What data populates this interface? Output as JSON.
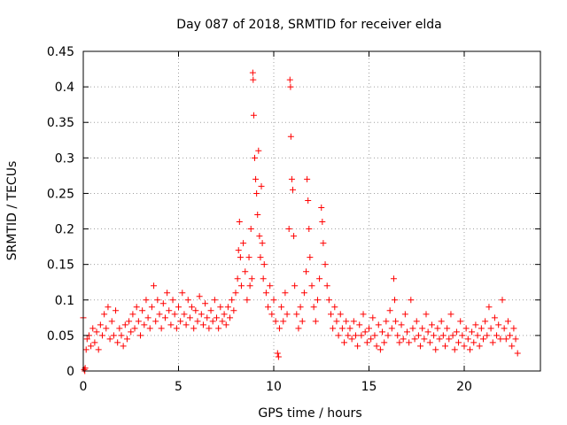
{
  "chart_data": {
    "type": "scatter",
    "title": "Day 087 of 2018, SRMTID for receiver elda",
    "xlabel": "GPS time / hours",
    "ylabel": "SRMTID / TECUs",
    "xlim": [
      0,
      24
    ],
    "ylim": [
      0,
      0.45
    ],
    "xticks": [
      0,
      5,
      10,
      15,
      20
    ],
    "xtick_labels": [
      "0",
      "5",
      "10",
      "15",
      "20"
    ],
    "yticks": [
      0,
      0.05,
      0.1,
      0.15,
      0.2,
      0.25,
      0.3,
      0.35,
      0.4,
      0.45
    ],
    "ytick_labels": [
      "0",
      "0.05",
      "0.1",
      "0.15",
      "0.2",
      "0.25",
      "0.3",
      "0.35",
      "0.4",
      "0.45"
    ],
    "grid": true,
    "marker": "+",
    "color": "#ff0000",
    "series": [
      {
        "name": "SRMTID",
        "points": [
          [
            0.0,
            0.075
          ],
          [
            0.05,
            0.002
          ],
          [
            0.08,
            0.0
          ],
          [
            0.1,
            0.004
          ],
          [
            0.15,
            0.03
          ],
          [
            0.2,
            0.045
          ],
          [
            0.3,
            0.05
          ],
          [
            0.4,
            0.035
          ],
          [
            0.5,
            0.06
          ],
          [
            0.6,
            0.04
          ],
          [
            0.7,
            0.055
          ],
          [
            0.8,
            0.03
          ],
          [
            0.9,
            0.065
          ],
          [
            1.0,
            0.05
          ],
          [
            1.1,
            0.08
          ],
          [
            1.2,
            0.06
          ],
          [
            1.3,
            0.09
          ],
          [
            1.4,
            0.045
          ],
          [
            1.5,
            0.07
          ],
          [
            1.6,
            0.05
          ],
          [
            1.7,
            0.085
          ],
          [
            1.8,
            0.04
          ],
          [
            1.9,
            0.06
          ],
          [
            2.0,
            0.05
          ],
          [
            2.1,
            0.035
          ],
          [
            2.2,
            0.065
          ],
          [
            2.3,
            0.045
          ],
          [
            2.4,
            0.07
          ],
          [
            2.5,
            0.055
          ],
          [
            2.6,
            0.08
          ],
          [
            2.7,
            0.06
          ],
          [
            2.8,
            0.09
          ],
          [
            2.9,
            0.07
          ],
          [
            3.0,
            0.05
          ],
          [
            3.1,
            0.085
          ],
          [
            3.2,
            0.065
          ],
          [
            3.3,
            0.1
          ],
          [
            3.4,
            0.075
          ],
          [
            3.5,
            0.06
          ],
          [
            3.6,
            0.09
          ],
          [
            3.7,
            0.12
          ],
          [
            3.8,
            0.07
          ],
          [
            3.9,
            0.1
          ],
          [
            4.0,
            0.08
          ],
          [
            4.1,
            0.06
          ],
          [
            4.2,
            0.095
          ],
          [
            4.3,
            0.075
          ],
          [
            4.4,
            0.11
          ],
          [
            4.5,
            0.085
          ],
          [
            4.6,
            0.065
          ],
          [
            4.7,
            0.1
          ],
          [
            4.8,
            0.08
          ],
          [
            4.9,
            0.06
          ],
          [
            5.0,
            0.09
          ],
          [
            5.1,
            0.07
          ],
          [
            5.2,
            0.11
          ],
          [
            5.3,
            0.08
          ],
          [
            5.4,
            0.065
          ],
          [
            5.5,
            0.1
          ],
          [
            5.6,
            0.075
          ],
          [
            5.7,
            0.09
          ],
          [
            5.8,
            0.06
          ],
          [
            5.9,
            0.085
          ],
          [
            6.0,
            0.07
          ],
          [
            6.1,
            0.105
          ],
          [
            6.2,
            0.08
          ],
          [
            6.3,
            0.065
          ],
          [
            6.4,
            0.095
          ],
          [
            6.5,
            0.075
          ],
          [
            6.6,
            0.06
          ],
          [
            6.7,
            0.085
          ],
          [
            6.8,
            0.07
          ],
          [
            6.9,
            0.1
          ],
          [
            7.0,
            0.075
          ],
          [
            7.1,
            0.06
          ],
          [
            7.2,
            0.09
          ],
          [
            7.3,
            0.07
          ],
          [
            7.4,
            0.08
          ],
          [
            7.5,
            0.065
          ],
          [
            7.6,
            0.09
          ],
          [
            7.7,
            0.075
          ],
          [
            7.8,
            0.1
          ],
          [
            7.9,
            0.085
          ],
          [
            8.0,
            0.11
          ],
          [
            8.1,
            0.13
          ],
          [
            8.15,
            0.17
          ],
          [
            8.2,
            0.21
          ],
          [
            8.25,
            0.16
          ],
          [
            8.3,
            0.12
          ],
          [
            8.4,
            0.18
          ],
          [
            8.5,
            0.14
          ],
          [
            8.6,
            0.1
          ],
          [
            8.7,
            0.16
          ],
          [
            8.75,
            0.12
          ],
          [
            8.8,
            0.2
          ],
          [
            8.85,
            0.13
          ],
          [
            8.9,
            0.42
          ],
          [
            8.92,
            0.41
          ],
          [
            8.95,
            0.36
          ],
          [
            9.0,
            0.3
          ],
          [
            9.05,
            0.27
          ],
          [
            9.1,
            0.25
          ],
          [
            9.15,
            0.22
          ],
          [
            9.2,
            0.31
          ],
          [
            9.25,
            0.19
          ],
          [
            9.3,
            0.16
          ],
          [
            9.35,
            0.26
          ],
          [
            9.4,
            0.18
          ],
          [
            9.45,
            0.13
          ],
          [
            9.5,
            0.15
          ],
          [
            9.6,
            0.11
          ],
          [
            9.7,
            0.09
          ],
          [
            9.8,
            0.12
          ],
          [
            9.9,
            0.08
          ],
          [
            10.0,
            0.1
          ],
          [
            10.1,
            0.07
          ],
          [
            10.2,
            0.025
          ],
          [
            10.25,
            0.02
          ],
          [
            10.3,
            0.06
          ],
          [
            10.4,
            0.09
          ],
          [
            10.5,
            0.07
          ],
          [
            10.6,
            0.11
          ],
          [
            10.7,
            0.08
          ],
          [
            10.8,
            0.2
          ],
          [
            10.85,
            0.41
          ],
          [
            10.88,
            0.4
          ],
          [
            10.9,
            0.33
          ],
          [
            10.95,
            0.27
          ],
          [
            11.0,
            0.255
          ],
          [
            11.05,
            0.19
          ],
          [
            11.1,
            0.12
          ],
          [
            11.2,
            0.08
          ],
          [
            11.3,
            0.06
          ],
          [
            11.4,
            0.09
          ],
          [
            11.5,
            0.07
          ],
          [
            11.6,
            0.11
          ],
          [
            11.7,
            0.14
          ],
          [
            11.75,
            0.27
          ],
          [
            11.8,
            0.24
          ],
          [
            11.85,
            0.2
          ],
          [
            11.9,
            0.16
          ],
          [
            12.0,
            0.12
          ],
          [
            12.1,
            0.09
          ],
          [
            12.2,
            0.07
          ],
          [
            12.3,
            0.1
          ],
          [
            12.4,
            0.13
          ],
          [
            12.5,
            0.23
          ],
          [
            12.55,
            0.21
          ],
          [
            12.6,
            0.18
          ],
          [
            12.7,
            0.15
          ],
          [
            12.8,
            0.12
          ],
          [
            12.9,
            0.1
          ],
          [
            13.0,
            0.08
          ],
          [
            13.1,
            0.06
          ],
          [
            13.2,
            0.09
          ],
          [
            13.3,
            0.07
          ],
          [
            13.4,
            0.05
          ],
          [
            13.5,
            0.08
          ],
          [
            13.6,
            0.06
          ],
          [
            13.7,
            0.04
          ],
          [
            13.8,
            0.07
          ],
          [
            13.9,
            0.05
          ],
          [
            14.0,
            0.06
          ],
          [
            14.1,
            0.045
          ],
          [
            14.2,
            0.07
          ],
          [
            14.3,
            0.05
          ],
          [
            14.4,
            0.035
          ],
          [
            14.5,
            0.065
          ],
          [
            14.6,
            0.05
          ],
          [
            14.7,
            0.08
          ],
          [
            14.8,
            0.055
          ],
          [
            14.9,
            0.04
          ],
          [
            15.0,
            0.06
          ],
          [
            15.1,
            0.045
          ],
          [
            15.2,
            0.075
          ],
          [
            15.3,
            0.05
          ],
          [
            15.4,
            0.035
          ],
          [
            15.5,
            0.065
          ],
          [
            15.6,
            0.03
          ],
          [
            15.7,
            0.055
          ],
          [
            15.8,
            0.04
          ],
          [
            15.9,
            0.07
          ],
          [
            16.0,
            0.05
          ],
          [
            16.1,
            0.085
          ],
          [
            16.2,
            0.06
          ],
          [
            16.3,
            0.13
          ],
          [
            16.35,
            0.1
          ],
          [
            16.4,
            0.07
          ],
          [
            16.5,
            0.05
          ],
          [
            16.6,
            0.04
          ],
          [
            16.7,
            0.065
          ],
          [
            16.8,
            0.045
          ],
          [
            16.9,
            0.08
          ],
          [
            17.0,
            0.055
          ],
          [
            17.1,
            0.04
          ],
          [
            17.2,
            0.1
          ],
          [
            17.3,
            0.06
          ],
          [
            17.4,
            0.045
          ],
          [
            17.5,
            0.07
          ],
          [
            17.6,
            0.05
          ],
          [
            17.7,
            0.035
          ],
          [
            17.8,
            0.06
          ],
          [
            17.9,
            0.045
          ],
          [
            18.0,
            0.08
          ],
          [
            18.1,
            0.055
          ],
          [
            18.2,
            0.04
          ],
          [
            18.3,
            0.065
          ],
          [
            18.4,
            0.05
          ],
          [
            18.5,
            0.03
          ],
          [
            18.6,
            0.06
          ],
          [
            18.7,
            0.045
          ],
          [
            18.8,
            0.07
          ],
          [
            18.9,
            0.05
          ],
          [
            19.0,
            0.035
          ],
          [
            19.1,
            0.06
          ],
          [
            19.2,
            0.045
          ],
          [
            19.3,
            0.08
          ],
          [
            19.4,
            0.05
          ],
          [
            19.5,
            0.03
          ],
          [
            19.6,
            0.055
          ],
          [
            19.7,
            0.04
          ],
          [
            19.8,
            0.07
          ],
          [
            19.9,
            0.05
          ],
          [
            20.0,
            0.035
          ],
          [
            20.1,
            0.06
          ],
          [
            20.2,
            0.045
          ],
          [
            20.3,
            0.03
          ],
          [
            20.4,
            0.055
          ],
          [
            20.5,
            0.04
          ],
          [
            20.6,
            0.065
          ],
          [
            20.7,
            0.05
          ],
          [
            20.8,
            0.035
          ],
          [
            20.9,
            0.06
          ],
          [
            21.0,
            0.045
          ],
          [
            21.1,
            0.07
          ],
          [
            21.2,
            0.05
          ],
          [
            21.3,
            0.09
          ],
          [
            21.4,
            0.06
          ],
          [
            21.5,
            0.04
          ],
          [
            21.6,
            0.075
          ],
          [
            21.7,
            0.05
          ],
          [
            21.8,
            0.065
          ],
          [
            21.9,
            0.045
          ],
          [
            22.0,
            0.1
          ],
          [
            22.1,
            0.06
          ],
          [
            22.2,
            0.045
          ],
          [
            22.3,
            0.07
          ],
          [
            22.4,
            0.05
          ],
          [
            22.5,
            0.035
          ],
          [
            22.6,
            0.06
          ],
          [
            22.7,
            0.045
          ],
          [
            22.8,
            0.025
          ]
        ]
      }
    ]
  }
}
